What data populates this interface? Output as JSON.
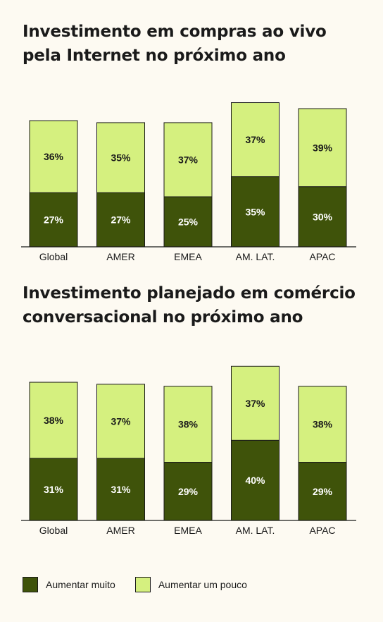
{
  "colors": {
    "dark": "#3f530a",
    "light": "#d5f07f",
    "outline": "#1a1a1a",
    "label_dark": "#1a1a1a",
    "label_light": "#ffffff"
  },
  "legend": [
    {
      "name": "Aumentar muito",
      "color": "#3f530a"
    },
    {
      "name": "Aumentar um pouco",
      "color": "#d5f07f"
    }
  ],
  "chart_data": [
    {
      "type": "bar",
      "stacked": true,
      "title": "Investimento em compras ao vivo pela Internet no próximo ano",
      "categories": [
        "Global",
        "AMER",
        "EMEA",
        "AM. LAT.",
        "APAC"
      ],
      "series": [
        {
          "name": "Aumentar muito",
          "values": [
            27,
            27,
            25,
            35,
            30
          ],
          "labels": [
            "27%",
            "27%",
            "25%",
            "35%",
            "30%"
          ]
        },
        {
          "name": "Aumentar um pouco",
          "values": [
            36,
            35,
            37,
            37,
            39
          ],
          "labels": [
            "36%",
            "35%",
            "37%",
            "37%",
            "39%"
          ]
        }
      ],
      "ylim": [
        0,
        80
      ]
    },
    {
      "type": "bar",
      "stacked": true,
      "title": "Investimento planejado em comércio conversacional no próximo ano",
      "categories": [
        "Global",
        "AMER",
        "EMEA",
        "AM. LAT.",
        "APAC"
      ],
      "series": [
        {
          "name": "Aumentar muito",
          "values": [
            31,
            31,
            29,
            40,
            29
          ],
          "labels": [
            "31%",
            "31%",
            "29%",
            "40%",
            "29%"
          ]
        },
        {
          "name": "Aumentar um pouco",
          "values": [
            38,
            37,
            38,
            37,
            38
          ],
          "labels": [
            "38%",
            "37%",
            "38%",
            "37%",
            "38%"
          ]
        }
      ],
      "ylim": [
        0,
        80
      ]
    }
  ]
}
